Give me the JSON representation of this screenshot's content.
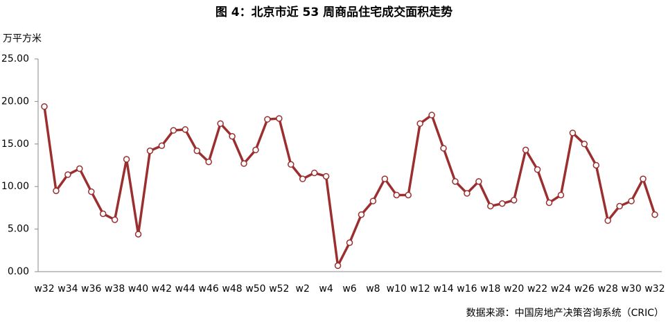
{
  "chart_data": {
    "type": "line",
    "title": "图 4：北京市近 53 周商品住宅成交面积走势",
    "y_axis_label": "万平方米",
    "source": "数据来源：中国房地产决策咨询系统（CRIC）",
    "categories": [
      "w32",
      null,
      "w34",
      null,
      "w36",
      null,
      "w38",
      null,
      "w40",
      null,
      "w42",
      null,
      "w44",
      null,
      "w46",
      null,
      "w48",
      null,
      "w50",
      null,
      "w52",
      null,
      "w2",
      null,
      "w4",
      null,
      "w6",
      null,
      "w8",
      null,
      "w10",
      null,
      "w12",
      null,
      "w14",
      null,
      "w16",
      null,
      "w18",
      null,
      "w20",
      null,
      "w22",
      null,
      "w24",
      null,
      "w26",
      null,
      "w28",
      null,
      "w30",
      null,
      "w32"
    ],
    "series": [
      {
        "name": "成交面积",
        "color": "#9b2f2f",
        "values": [
          19.4,
          9.5,
          11.4,
          12.1,
          9.4,
          6.8,
          6.1,
          13.2,
          4.4,
          14.2,
          14.8,
          16.6,
          16.7,
          14.2,
          12.9,
          17.4,
          15.9,
          12.7,
          14.3,
          17.9,
          18.0,
          12.6,
          10.9,
          11.6,
          11.2,
          0.7,
          3.4,
          6.7,
          8.3,
          10.9,
          9.0,
          9.0,
          17.4,
          18.4,
          14.5,
          10.6,
          9.2,
          10.6,
          7.7,
          8.0,
          8.4,
          14.3,
          12.0,
          8.1,
          9.0,
          16.3,
          15.0,
          12.5,
          6.0,
          7.7,
          8.3,
          10.9,
          6.7
        ]
      }
    ],
    "ylim": [
      0,
      25
    ],
    "yticks": [
      {
        "value": 0,
        "label": "0.00"
      },
      {
        "value": 5,
        "label": "5.00"
      },
      {
        "value": 10,
        "label": "10.00"
      },
      {
        "value": 15,
        "label": "15.00"
      },
      {
        "value": 20,
        "label": "20.00"
      },
      {
        "value": 25,
        "label": "25.00"
      }
    ],
    "grid": false
  }
}
